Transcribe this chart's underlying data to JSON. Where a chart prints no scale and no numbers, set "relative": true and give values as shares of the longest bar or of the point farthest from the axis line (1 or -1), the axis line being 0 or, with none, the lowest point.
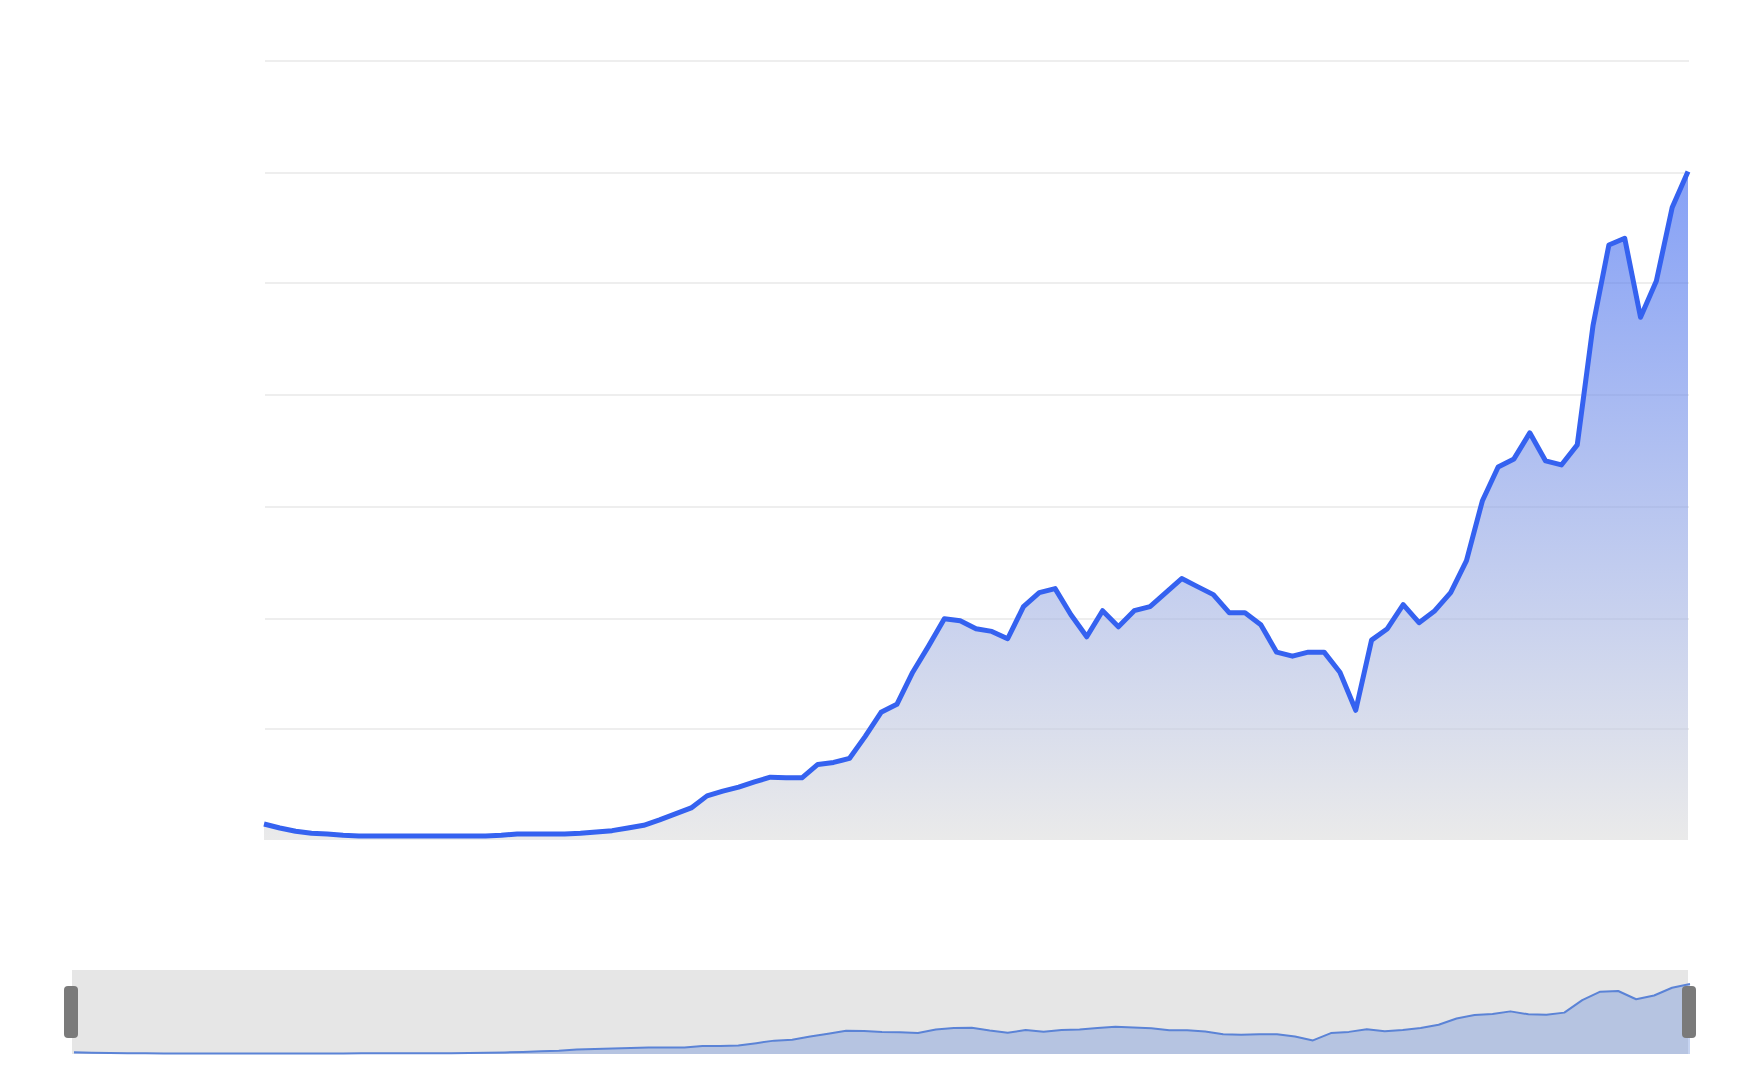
{
  "chart_data": [
    {
      "type": "area",
      "relative": true,
      "grid": "y",
      "tick_labels": false,
      "categories": [
        null,
        null,
        null,
        null,
        null,
        null,
        null,
        null,
        null,
        null,
        null,
        null,
        null,
        null,
        null,
        null,
        null,
        null,
        null,
        null,
        null,
        null,
        null,
        null,
        null,
        null,
        null,
        null,
        null,
        null,
        null,
        null,
        null,
        null,
        null,
        null,
        null,
        null,
        null,
        null,
        null,
        null,
        null,
        null,
        null,
        null,
        null,
        null,
        null,
        null,
        null,
        null,
        null,
        null,
        null,
        null,
        null,
        null,
        null,
        null,
        null,
        null,
        null,
        null,
        null,
        null,
        null,
        null,
        null,
        null,
        null,
        null,
        null,
        null,
        null,
        null,
        null,
        null,
        null,
        null,
        null,
        null,
        null,
        null,
        null,
        null,
        null,
        null,
        null,
        null,
        null
      ],
      "series": [
        {
          "color": "#3562f0",
          "values": [
            0.024,
            0.018,
            0.013,
            0.01,
            0.009,
            0.007,
            0.006,
            0.006,
            0.006,
            0.006,
            0.006,
            0.006,
            0.006,
            0.006,
            0.006,
            0.007,
            0.009,
            0.009,
            0.009,
            0.009,
            0.01,
            0.012,
            0.014,
            0.018,
            0.022,
            0.03,
            0.039,
            0.048,
            0.066,
            0.073,
            0.079,
            0.087,
            0.094,
            0.093,
            0.093,
            0.113,
            0.116,
            0.122,
            0.155,
            0.191,
            0.203,
            0.251,
            0.29,
            0.331,
            0.328,
            0.316,
            0.312,
            0.301,
            0.349,
            0.37,
            0.376,
            0.337,
            0.304,
            0.343,
            0.319,
            0.343,
            0.349,
            0.37,
            0.391,
            0.379,
            0.367,
            0.34,
            0.34,
            0.322,
            0.281,
            0.275,
            0.281,
            0.281,
            0.251,
            0.194,
            0.299,
            0.316,
            0.352,
            0.325,
            0.343,
            0.37,
            0.418,
            0.507,
            0.558,
            0.57,
            0.609,
            0.567,
            0.561,
            0.591,
            0.77,
            0.89,
            0.9,
            0.782,
            0.836,
            0.946,
            1.0
          ]
        }
      ]
    },
    {
      "type": "area",
      "relative": true,
      "tick_labels": false,
      "categories": [
        null,
        null,
        null,
        null,
        null,
        null,
        null,
        null,
        null,
        null,
        null,
        null,
        null,
        null,
        null,
        null,
        null,
        null,
        null,
        null,
        null,
        null,
        null,
        null,
        null,
        null,
        null,
        null,
        null,
        null,
        null,
        null,
        null,
        null,
        null,
        null,
        null,
        null,
        null,
        null,
        null,
        null,
        null,
        null,
        null,
        null,
        null,
        null,
        null,
        null,
        null,
        null,
        null,
        null,
        null,
        null,
        null,
        null,
        null,
        null,
        null,
        null,
        null,
        null,
        null,
        null,
        null,
        null,
        null,
        null,
        null,
        null,
        null,
        null,
        null,
        null,
        null,
        null,
        null,
        null,
        null,
        null,
        null,
        null,
        null,
        null,
        null,
        null,
        null,
        null,
        null
      ],
      "series": [
        {
          "color": "#5b83d6",
          "values": [
            0.024,
            0.018,
            0.013,
            0.01,
            0.009,
            0.007,
            0.006,
            0.006,
            0.006,
            0.006,
            0.006,
            0.006,
            0.006,
            0.006,
            0.006,
            0.007,
            0.009,
            0.009,
            0.009,
            0.009,
            0.01,
            0.012,
            0.014,
            0.018,
            0.022,
            0.03,
            0.039,
            0.048,
            0.066,
            0.073,
            0.079,
            0.087,
            0.094,
            0.093,
            0.093,
            0.113,
            0.116,
            0.122,
            0.155,
            0.191,
            0.203,
            0.251,
            0.29,
            0.331,
            0.328,
            0.316,
            0.312,
            0.301,
            0.349,
            0.37,
            0.376,
            0.337,
            0.304,
            0.343,
            0.319,
            0.343,
            0.349,
            0.37,
            0.391,
            0.379,
            0.367,
            0.34,
            0.34,
            0.322,
            0.281,
            0.275,
            0.281,
            0.281,
            0.251,
            0.194,
            0.299,
            0.316,
            0.352,
            0.325,
            0.343,
            0.37,
            0.418,
            0.507,
            0.558,
            0.57,
            0.609,
            0.567,
            0.561,
            0.591,
            0.77,
            0.89,
            0.9,
            0.782,
            0.836,
            0.946,
            1.0
          ]
        }
      ]
    }
  ]
}
